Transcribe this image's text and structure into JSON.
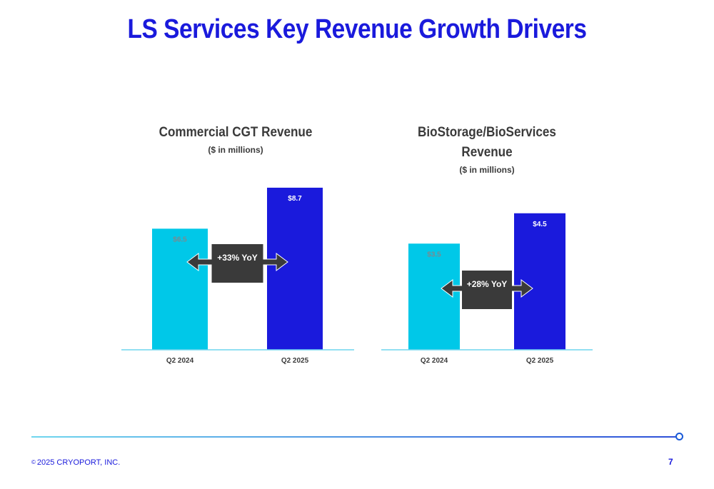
{
  "page": {
    "title": "LS Services Key Revenue Growth Drivers",
    "copyright_symbol": "©",
    "copyright": "2025 CRYOPORT, INC.",
    "page_number": "7"
  },
  "colors": {
    "title": "#1a1adc",
    "bar_2024": "#00c8e8",
    "bar_2025": "#1a1adc",
    "arrow_box": "#3a3a3a",
    "baseline": "#6fd6ee"
  },
  "chart_data": [
    {
      "type": "bar",
      "title": "Commercial CGT Revenue",
      "subtitle": "($ in millions)",
      "categories": [
        "Q2 2024",
        "Q2 2025"
      ],
      "values": [
        6.5,
        8.7
      ],
      "value_labels": [
        "$6.5",
        "$8.7"
      ],
      "annotation": "+33% YoY",
      "grid": false
    },
    {
      "type": "bar",
      "title": "BioStorage/BioServices Revenue",
      "subtitle": "($ in millions)",
      "categories": [
        "Q2 2024",
        "Q2 2025"
      ],
      "values": [
        3.5,
        4.5
      ],
      "value_labels": [
        "$3.5",
        "$4.5"
      ],
      "annotation": "+28% YoY",
      "grid": false
    }
  ]
}
